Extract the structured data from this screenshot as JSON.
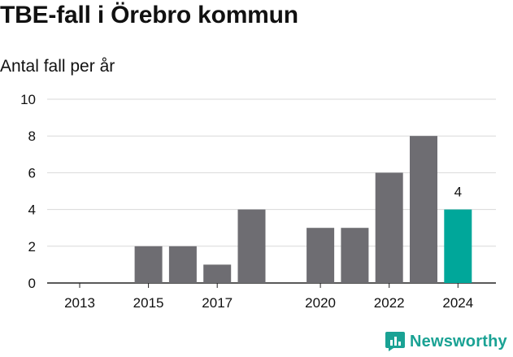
{
  "title": "TBE-fall i Örebro kommun",
  "subtitle": "Antal fall per år",
  "brand": {
    "name": "Newsworthy",
    "color": "#1aa294"
  },
  "colors": {
    "bar": "#6e6d72",
    "highlight": "#00a79a",
    "grid": "#d9d9d9",
    "axis": "#222222"
  },
  "chart_data": {
    "type": "bar",
    "title": "TBE-fall i Örebro kommun",
    "subtitle": "Antal fall per år",
    "xlabel": "",
    "ylabel": "",
    "categories": [
      "2013",
      "2014",
      "2015",
      "2016",
      "2017",
      "2018",
      "2019",
      "2020",
      "2021",
      "2022",
      "2023",
      "2024"
    ],
    "values": [
      0,
      0,
      2,
      2,
      1,
      4,
      0,
      3,
      3,
      6,
      8,
      4
    ],
    "x_tick_labels": [
      "2013",
      "2015",
      "2017",
      "2020",
      "2022",
      "2024"
    ],
    "y_ticks": [
      0,
      2,
      4,
      6,
      8,
      10
    ],
    "ylim": [
      0,
      10
    ],
    "grid": true,
    "highlight_index": 11,
    "data_labels": [
      {
        "index": 11,
        "text": "4"
      }
    ]
  }
}
